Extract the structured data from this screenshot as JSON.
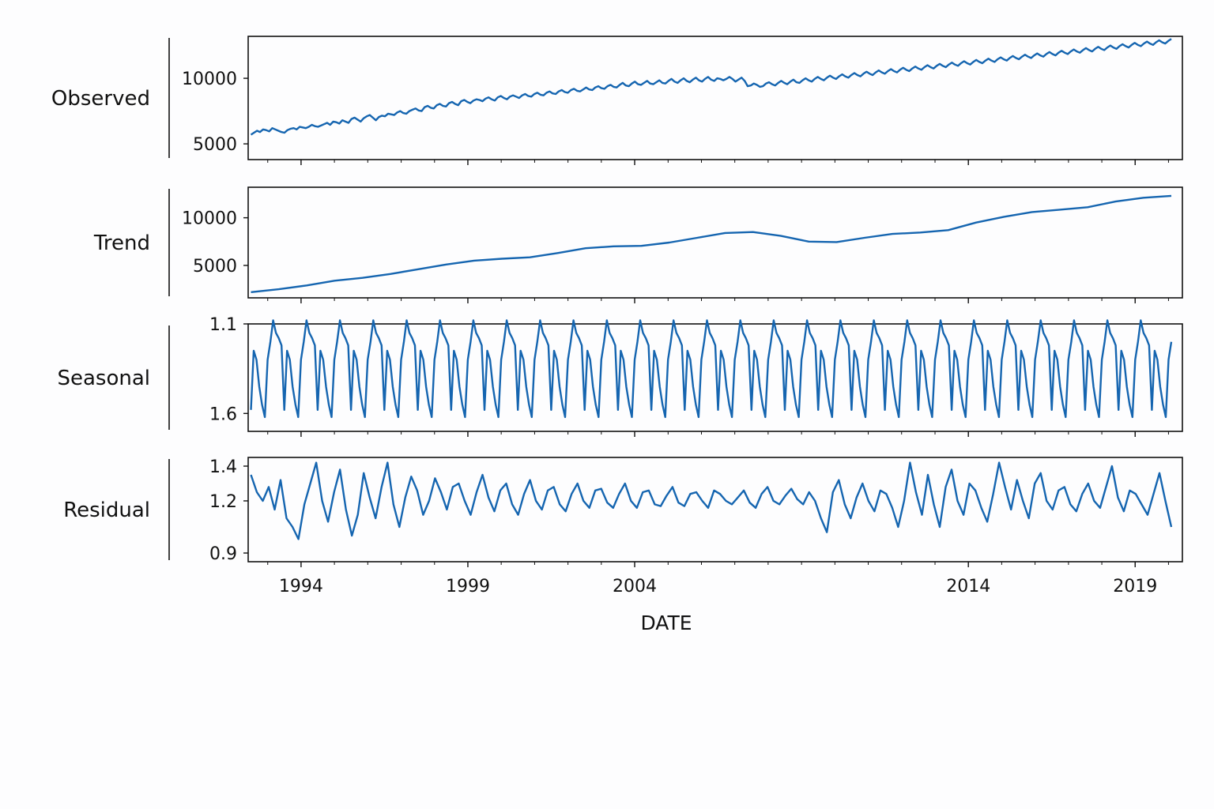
{
  "chart_data": {
    "type": "line",
    "xlabel": "DATE",
    "line_color": "#1565b0",
    "x_ticks": [
      {
        "date": "1994-01-01",
        "label": "1994"
      },
      {
        "date": "1999-01-01",
        "label": "1999"
      },
      {
        "date": "2004-01-01",
        "label": "2004"
      },
      {
        "date": "2014-01-01",
        "label": "2014"
      },
      {
        "date": "2019-01-01",
        "label": "2019"
      }
    ],
    "x_range": [
      "1992-06-01",
      "2020-06-01"
    ],
    "panels": [
      {
        "name": "Observed",
        "ylabel": "Observed",
        "ylim": [
          3800,
          13200
        ],
        "yticks": [
          {
            "value": 5000,
            "label": "5000"
          },
          {
            "value": 10000,
            "label": "10000"
          }
        ],
        "series": {
          "x_start": "1992-07-01",
          "x_end": "2020-02-01",
          "values": [
            5700,
            5850,
            6000,
            5900,
            6100,
            6050,
            5950,
            6200,
            6100,
            6000,
            5900,
            5850,
            6050,
            6150,
            6200,
            6100,
            6300,
            6250,
            6200,
            6300,
            6450,
            6350,
            6300,
            6400,
            6500,
            6600,
            6450,
            6700,
            6650,
            6550,
            6800,
            6700,
            6600,
            6900,
            7000,
            6850,
            6700,
            6950,
            7100,
            7200,
            7000,
            6800,
            7050,
            7150,
            7100,
            7300,
            7250,
            7200,
            7400,
            7500,
            7350,
            7300,
            7500,
            7600,
            7700,
            7550,
            7500,
            7800,
            7900,
            7750,
            7700,
            7950,
            8050,
            7900,
            7850,
            8100,
            8200,
            8050,
            7950,
            8250,
            8350,
            8200,
            8100,
            8300,
            8400,
            8350,
            8250,
            8450,
            8550,
            8400,
            8300,
            8550,
            8650,
            8500,
            8400,
            8600,
            8700,
            8600,
            8500,
            8700,
            8800,
            8650,
            8600,
            8800,
            8900,
            8750,
            8700,
            8900,
            9000,
            8850,
            8800,
            9000,
            9100,
            8950,
            8900,
            9100,
            9200,
            9050,
            9000,
            9150,
            9300,
            9150,
            9100,
            9300,
            9400,
            9250,
            9200,
            9400,
            9500,
            9350,
            9300,
            9500,
            9650,
            9450,
            9400,
            9600,
            9750,
            9550,
            9500,
            9650,
            9800,
            9600,
            9550,
            9700,
            9850,
            9650,
            9600,
            9800,
            9950,
            9750,
            9650,
            9850,
            10000,
            9800,
            9700,
            9900,
            10050,
            9850,
            9750,
            9950,
            10100,
            9900,
            9800,
            10000,
            9950,
            9850,
            9950,
            10100,
            9950,
            9750,
            9900,
            10050,
            9800,
            9400,
            9450,
            9600,
            9500,
            9350,
            9400,
            9600,
            9700,
            9550,
            9450,
            9650,
            9800,
            9650,
            9550,
            9750,
            9900,
            9700,
            9650,
            9850,
            10000,
            9850,
            9750,
            9950,
            10100,
            9950,
            9850,
            10050,
            10200,
            10050,
            9950,
            10150,
            10300,
            10150,
            10050,
            10250,
            10400,
            10250,
            10150,
            10350,
            10500,
            10350,
            10250,
            10450,
            10600,
            10450,
            10350,
            10550,
            10700,
            10550,
            10450,
            10650,
            10800,
            10650,
            10550,
            10750,
            10900,
            10750,
            10650,
            10850,
            11000,
            10850,
            10750,
            10950,
            11100,
            10950,
            10850,
            11050,
            11200,
            11050,
            10950,
            11150,
            11300,
            11150,
            11050,
            11250,
            11400,
            11250,
            11150,
            11350,
            11500,
            11350,
            11250,
            11450,
            11600,
            11450,
            11350,
            11550,
            11700,
            11550,
            11450,
            11650,
            11800,
            11650,
            11550,
            11750,
            11900,
            11750,
            11650,
            11850,
            12000,
            11850,
            11750,
            11950,
            12100,
            11950,
            11850,
            12050,
            12200,
            12050,
            11950,
            12150,
            12300,
            12150,
            12050,
            12250,
            12400,
            12250,
            12150,
            12350,
            12500,
            12350,
            12250,
            12450,
            12600,
            12450,
            12350,
            12550,
            12700,
            12550,
            12450,
            12650,
            12800,
            12650,
            12550,
            12750,
            12900,
            12750,
            12650,
            12850,
            13000
          ]
        }
      },
      {
        "name": "Trend",
        "ylabel": "Trend",
        "ylim": [
          1600,
          13200
        ],
        "yticks": [
          {
            "value": 5000,
            "label": "5000"
          },
          {
            "value": 10000,
            "label": "10000"
          }
        ],
        "series": {
          "x_start": "1992-07-01",
          "x_end": "2020-02-01",
          "values": [
            2200,
            2500,
            2900,
            3400,
            3700,
            4100,
            4600,
            5100,
            5500,
            5700,
            5850,
            6300,
            6800,
            7000,
            7050,
            7400,
            7900,
            8400,
            8500,
            8100,
            7500,
            7450,
            7900,
            8300,
            8450,
            8700,
            9500,
            10100,
            10600,
            10850,
            11100,
            11700,
            12100,
            12300
          ]
        }
      },
      {
        "name": "Seasonal",
        "ylabel": "Seasonal",
        "ylim": [
          1.1,
          1.7
        ],
        "invert_y": true,
        "yticks": [
          {
            "value": 1.1,
            "label": "1.1"
          },
          {
            "value": 1.6,
            "label": "1.6"
          }
        ],
        "series": {
          "x_start": "1992-07-01",
          "x_end": "2020-02-01",
          "season_length": 12,
          "season": [
            1.58,
            1.25,
            1.3,
            1.45,
            1.55,
            1.62,
            1.3,
            1.2,
            1.08,
            1.15,
            1.18,
            1.22
          ]
        }
      },
      {
        "name": "Residual",
        "ylabel": "Residual",
        "ylim": [
          0.85,
          1.45
        ],
        "yticks": [
          {
            "value": 0.9,
            "label": "0.9"
          },
          {
            "value": 1.2,
            "label": "1.2"
          },
          {
            "value": 1.4,
            "label": "1.4"
          }
        ],
        "series": {
          "x_start": "1992-07-01",
          "x_end": "2020-02-01",
          "values": [
            1.35,
            1.25,
            1.2,
            1.28,
            1.15,
            1.32,
            1.1,
            1.05,
            0.98,
            1.18,
            1.3,
            1.42,
            1.2,
            1.08,
            1.25,
            1.38,
            1.15,
            1.0,
            1.12,
            1.36,
            1.22,
            1.1,
            1.28,
            1.42,
            1.18,
            1.05,
            1.22,
            1.34,
            1.26,
            1.12,
            1.2,
            1.33,
            1.25,
            1.15,
            1.28,
            1.3,
            1.2,
            1.12,
            1.25,
            1.35,
            1.22,
            1.14,
            1.26,
            1.3,
            1.18,
            1.12,
            1.24,
            1.32,
            1.2,
            1.15,
            1.26,
            1.28,
            1.18,
            1.14,
            1.24,
            1.3,
            1.2,
            1.16,
            1.26,
            1.27,
            1.19,
            1.16,
            1.24,
            1.3,
            1.2,
            1.16,
            1.25,
            1.26,
            1.18,
            1.17,
            1.23,
            1.28,
            1.19,
            1.17,
            1.24,
            1.25,
            1.2,
            1.16,
            1.26,
            1.24,
            1.2,
            1.18,
            1.22,
            1.26,
            1.19,
            1.16,
            1.24,
            1.28,
            1.2,
            1.18,
            1.23,
            1.27,
            1.21,
            1.18,
            1.25,
            1.2,
            1.1,
            1.02,
            1.25,
            1.32,
            1.18,
            1.1,
            1.22,
            1.3,
            1.2,
            1.14,
            1.26,
            1.24,
            1.16,
            1.05,
            1.2,
            1.42,
            1.25,
            1.12,
            1.35,
            1.18,
            1.05,
            1.28,
            1.38,
            1.2,
            1.12,
            1.3,
            1.26,
            1.16,
            1.08,
            1.24,
            1.42,
            1.28,
            1.15,
            1.32,
            1.2,
            1.1,
            1.3,
            1.36,
            1.2,
            1.15,
            1.26,
            1.28,
            1.18,
            1.14,
            1.24,
            1.3,
            1.2,
            1.16,
            1.28,
            1.4,
            1.22,
            1.14,
            1.26,
            1.24,
            1.18,
            1.12,
            1.24,
            1.36,
            1.2,
            1.05
          ]
        }
      }
    ]
  }
}
